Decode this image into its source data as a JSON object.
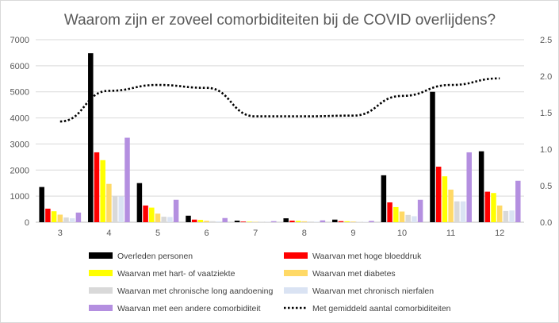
{
  "chart_data": {
    "type": "bar",
    "title": "Waarom zijn er zoveel comorbiditeiten bij de COVID overlijdens?",
    "categories": [
      "3",
      "4",
      "5",
      "6",
      "7",
      "8",
      "9",
      "10",
      "11",
      "12"
    ],
    "ylim": [
      0,
      7000
    ],
    "yticks": [
      "0",
      "1000",
      "2000",
      "3000",
      "4000",
      "5000",
      "6000",
      "7000"
    ],
    "y2lim": [
      0,
      2.5
    ],
    "y2ticks": [
      "0.0",
      "0.5",
      "1.0",
      "1.5",
      "2.0",
      "2.5"
    ],
    "grid": "horizontal",
    "legend_position": "bottom",
    "series": [
      {
        "name": "Overleden personen",
        "color": "#000000",
        "axis": "left",
        "values": [
          1350,
          6480,
          1500,
          250,
          60,
          150,
          100,
          1800,
          5000,
          2720
        ]
      },
      {
        "name": "Waarvan met hoge bloeddruk",
        "color": "#ff0000",
        "axis": "left",
        "values": [
          520,
          2680,
          640,
          100,
          25,
          60,
          40,
          760,
          2130,
          1170
        ]
      },
      {
        "name": "Waarvan met hart- of vaatziekte",
        "color": "#ffff00",
        "axis": "left",
        "values": [
          420,
          2380,
          560,
          90,
          20,
          50,
          35,
          580,
          1760,
          1120
        ]
      },
      {
        "name": "Waarvan met diabetes",
        "color": "#ffd966",
        "axis": "left",
        "values": [
          290,
          1470,
          330,
          55,
          15,
          35,
          25,
          410,
          1250,
          640
        ]
      },
      {
        "name": "Waarvan met chronische long aandoening",
        "color": "#d9d9d9",
        "axis": "left",
        "values": [
          180,
          990,
          210,
          40,
          10,
          25,
          15,
          280,
          800,
          430
        ]
      },
      {
        "name": "Waarvan met chronisch nierfalen",
        "color": "#dae3f3",
        "axis": "left",
        "values": [
          150,
          990,
          200,
          35,
          10,
          20,
          15,
          230,
          800,
          450
        ]
      },
      {
        "name": "Waarvan met een andere comorbiditeit",
        "color": "#b48fe0",
        "axis": "left",
        "values": [
          370,
          3240,
          860,
          160,
          40,
          70,
          50,
          860,
          2680,
          1590
        ]
      },
      {
        "name": "Met gemiddeld aantal comorbiditeiten",
        "color": "#000000",
        "axis": "right",
        "type": "line",
        "style": "dotted",
        "values": [
          1.38,
          1.8,
          1.88,
          1.84,
          1.45,
          1.45,
          1.46,
          1.73,
          1.88,
          1.97
        ]
      }
    ]
  }
}
